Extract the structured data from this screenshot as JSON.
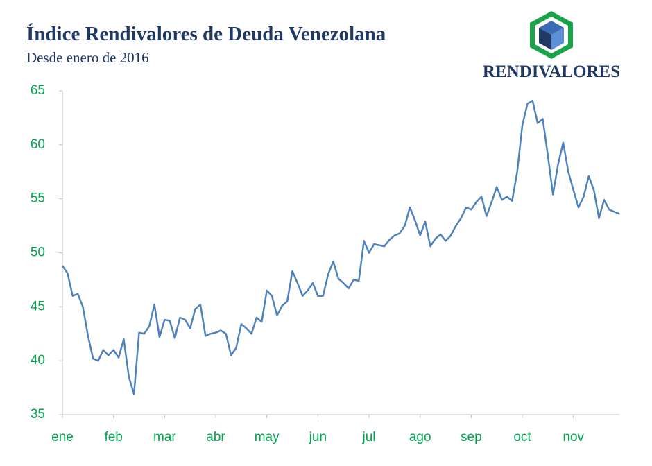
{
  "chart_data": {
    "type": "line",
    "title": "Índice Rendivalores de Deuda Venezolana",
    "subtitle": "Desde enero de 2016",
    "categories": [
      "ene",
      null,
      null,
      null,
      null,
      null,
      null,
      null,
      null,
      null,
      "feb",
      null,
      null,
      null,
      null,
      null,
      null,
      null,
      null,
      null,
      "mar",
      null,
      null,
      null,
      null,
      null,
      null,
      null,
      null,
      null,
      "abr",
      null,
      null,
      null,
      null,
      null,
      null,
      null,
      null,
      null,
      "may",
      null,
      null,
      null,
      null,
      null,
      null,
      null,
      null,
      null,
      "jun",
      null,
      null,
      null,
      null,
      null,
      null,
      null,
      null,
      null,
      "jul",
      null,
      null,
      null,
      null,
      null,
      null,
      null,
      null,
      null,
      "ago",
      null,
      null,
      null,
      null,
      null,
      null,
      null,
      null,
      null,
      "sep",
      null,
      null,
      null,
      null,
      null,
      null,
      null,
      null,
      null,
      "oct",
      null,
      null,
      null,
      null,
      null,
      null,
      null,
      null,
      null,
      "nov",
      null,
      null,
      null,
      null,
      null,
      null,
      null,
      null,
      null
    ],
    "values": [
      48.8,
      48.1,
      46.0,
      46.2,
      45.0,
      42.3,
      40.2,
      40.0,
      41.0,
      40.5,
      41.0,
      40.3,
      42.0,
      38.5,
      36.9,
      42.6,
      42.5,
      43.2,
      45.2,
      42.2,
      43.8,
      43.7,
      42.1,
      44.0,
      43.8,
      43.0,
      44.8,
      45.2,
      42.3,
      42.5,
      42.6,
      42.8,
      42.5,
      40.5,
      41.2,
      43.4,
      43.0,
      42.5,
      44.0,
      43.6,
      46.5,
      46.0,
      44.2,
      45.1,
      45.5,
      48.3,
      47.2,
      46.0,
      46.5,
      47.2,
      46.0,
      46.0,
      48.0,
      49.2,
      47.6,
      47.2,
      46.7,
      47.5,
      47.4,
      51.1,
      50.0,
      50.8,
      50.7,
      50.6,
      51.2,
      51.6,
      51.8,
      52.5,
      54.2,
      53.0,
      51.6,
      52.9,
      50.6,
      51.3,
      51.7,
      51.1,
      51.6,
      52.5,
      53.2,
      54.2,
      54.0,
      54.7,
      55.2,
      53.4,
      54.7,
      56.1,
      54.9,
      55.2,
      54.8,
      57.5,
      61.8,
      63.8,
      64.1,
      62.0,
      62.4,
      59.0,
      55.4,
      58.2,
      60.2,
      57.5,
      55.8,
      54.2,
      55.2,
      57.1,
      55.8,
      53.2,
      54.9,
      54.0,
      53.8,
      53.6
    ],
    "color": "#4f81bd",
    "ylim": [
      35,
      65
    ],
    "yticks": [
      35,
      40,
      45,
      50,
      55,
      60,
      65
    ],
    "grid": false
  },
  "logo": {
    "text": "RENDIVALORES"
  }
}
